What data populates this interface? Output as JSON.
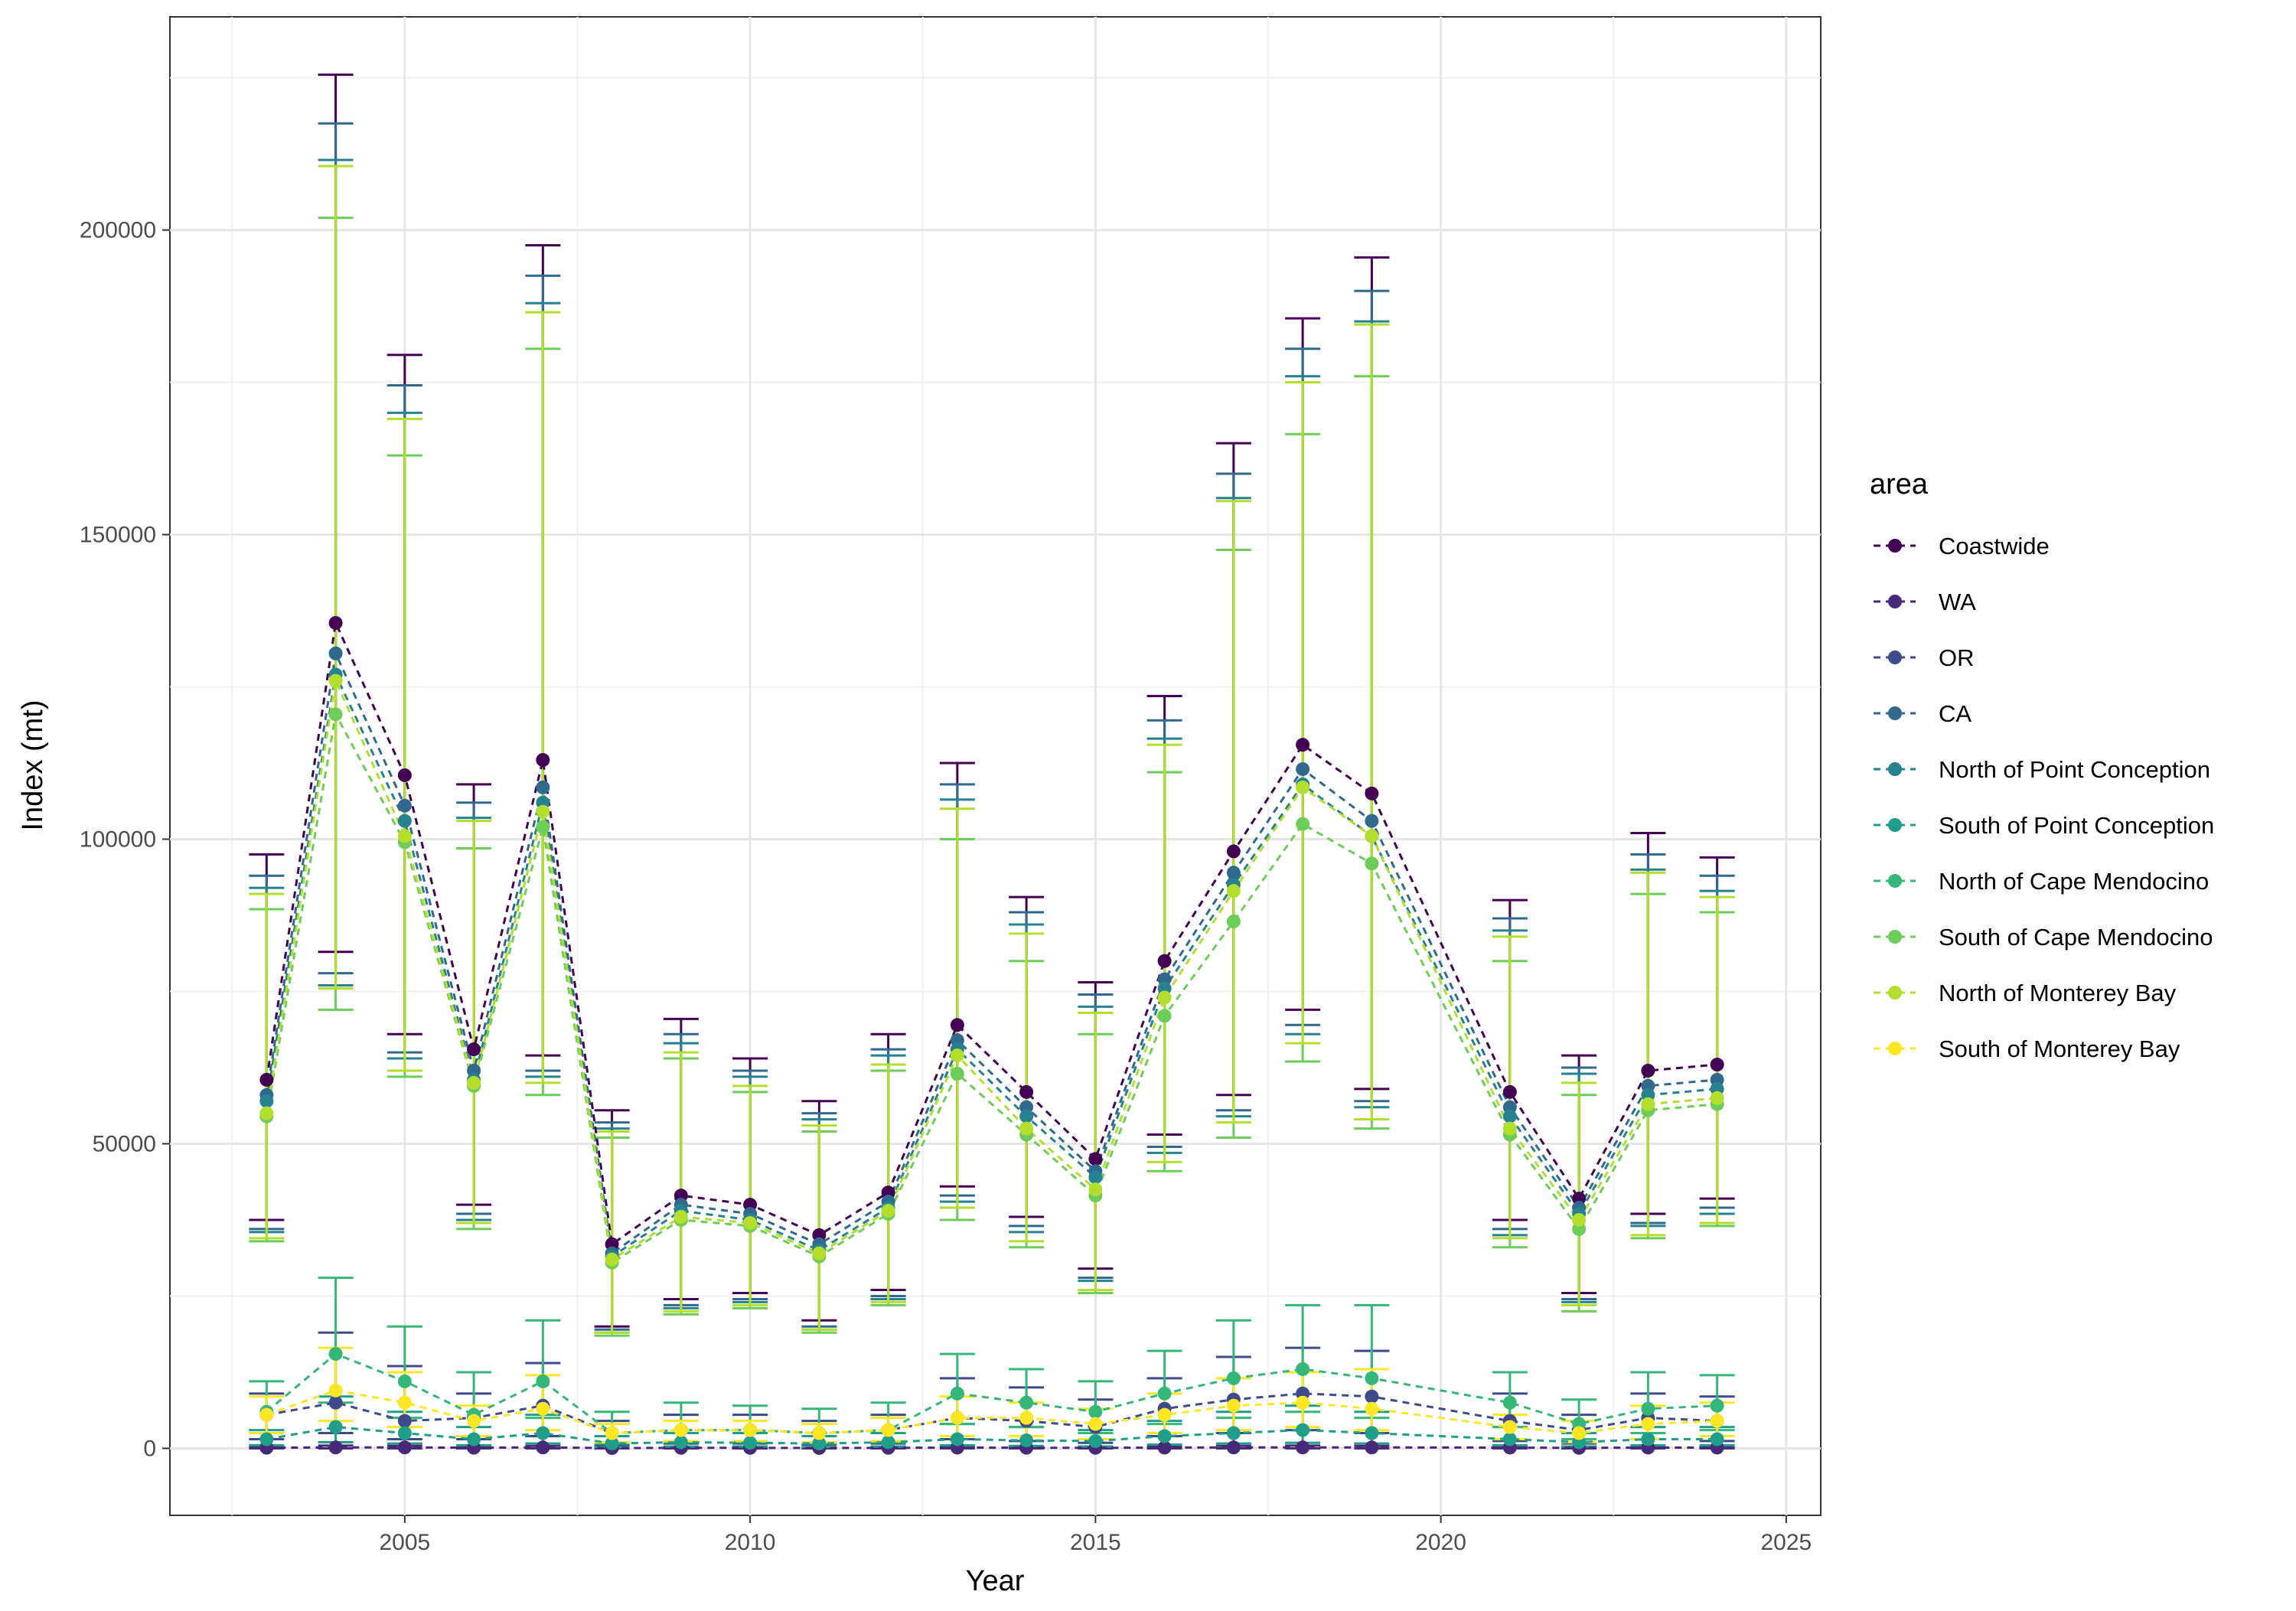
{
  "chart_data": {
    "type": "line",
    "xlabel": "Year",
    "ylabel": "Index (mt)",
    "x_ticks": [
      2005,
      2010,
      2015,
      2020,
      2025
    ],
    "y_ticks": [
      0,
      50000,
      100000,
      150000,
      200000
    ],
    "x_tick_labels": [
      "2005",
      "2010",
      "2015",
      "2020",
      "2025"
    ],
    "y_tick_labels": [
      "0",
      "50000",
      "100000",
      "150000",
      "200000"
    ],
    "xlim": [
      2001.6,
      2025.5
    ],
    "ylim": [
      -11000,
      235000
    ],
    "grid": true,
    "legend_position": "right",
    "legend_title": "area",
    "years": [
      2003,
      2004,
      2005,
      2006,
      2007,
      2008,
      2009,
      2010,
      2011,
      2012,
      2013,
      2014,
      2015,
      2016,
      2017,
      2018,
      2019,
      2021,
      2022,
      2023,
      2024
    ],
    "series": [
      {
        "name": "Coastwide",
        "color": "#440154",
        "values": [
          60500,
          135500,
          110500,
          65500,
          113000,
          33500,
          41500,
          40000,
          35000,
          42000,
          69500,
          58500,
          47500,
          80000,
          98000,
          115500,
          107500,
          58500,
          41000,
          62000,
          63000
        ],
        "lower": [
          37500,
          81500,
          68000,
          40000,
          64500,
          20000,
          24500,
          25500,
          21000,
          26000,
          43000,
          38000,
          29500,
          51500,
          58000,
          72000,
          59000,
          37500,
          25500,
          38500,
          41000
        ],
        "upper": [
          97500,
          225500,
          179500,
          109000,
          197500,
          55500,
          70500,
          64000,
          57000,
          68000,
          112500,
          90500,
          76500,
          123500,
          165000,
          185500,
          195500,
          90000,
          64500,
          101000,
          97000
        ]
      },
      {
        "name": "WA",
        "color": "#482878",
        "values": [
          100,
          150,
          150,
          100,
          150,
          50,
          80,
          80,
          60,
          80,
          120,
          100,
          80,
          120,
          150,
          150,
          150,
          120,
          80,
          120,
          120
        ],
        "lower": [
          0,
          0,
          0,
          0,
          0,
          0,
          0,
          0,
          0,
          0,
          0,
          0,
          0,
          0,
          0,
          0,
          0,
          0,
          0,
          0,
          0
        ],
        "upper": [
          300,
          450,
          400,
          300,
          400,
          200,
          250,
          250,
          200,
          250,
          350,
          300,
          250,
          350,
          400,
          450,
          400,
          350,
          250,
          350,
          350
        ]
      },
      {
        "name": "OR",
        "color": "#3E4A89",
        "values": [
          5500,
          7500,
          4500,
          5000,
          7000,
          2500,
          3000,
          3000,
          2500,
          3000,
          5000,
          4500,
          3500,
          6500,
          8000,
          9000,
          8500,
          4500,
          3000,
          5000,
          4500
        ],
        "lower": [
          1500,
          2500,
          1500,
          1500,
          2000,
          500,
          800,
          800,
          600,
          800,
          1500,
          1200,
          900,
          2000,
          2500,
          3000,
          2500,
          1200,
          800,
          1500,
          1200
        ],
        "upper": [
          9000,
          19000,
          13500,
          9000,
          14000,
          4500,
          5500,
          5500,
          4500,
          5500,
          11500,
          10000,
          8000,
          11500,
          15000,
          16500,
          16000,
          9000,
          5500,
          9000,
          8500
        ]
      },
      {
        "name": "CA",
        "color": "#31688E",
        "values": [
          58000,
          130500,
          105500,
          62000,
          108500,
          32000,
          40000,
          38500,
          33500,
          40500,
          67000,
          56000,
          45500,
          77000,
          94500,
          111500,
          103000,
          56000,
          39500,
          59500,
          60500
        ],
        "lower": [
          36000,
          78000,
          65000,
          38500,
          62000,
          19500,
          23500,
          24500,
          20000,
          25000,
          41500,
          36500,
          28000,
          49500,
          55500,
          69500,
          57000,
          36000,
          24500,
          37000,
          39500
        ],
        "upper": [
          94000,
          217500,
          174500,
          106000,
          192500,
          53500,
          68000,
          62000,
          55000,
          65500,
          109000,
          88000,
          74500,
          119500,
          160000,
          180500,
          190000,
          87000,
          62500,
          97500,
          94000
        ]
      },
      {
        "name": "North of Point Conception",
        "color": "#26828E",
        "values": [
          57000,
          127000,
          103000,
          60500,
          106000,
          31500,
          39000,
          37500,
          32500,
          39500,
          65500,
          54500,
          44500,
          75500,
          92500,
          109000,
          100500,
          54500,
          38500,
          58000,
          59000
        ],
        "lower": [
          35500,
          76000,
          64000,
          37500,
          61000,
          19000,
          23000,
          24000,
          19500,
          24500,
          40500,
          35500,
          27500,
          48500,
          54500,
          68000,
          56000,
          35000,
          24000,
          36500,
          38500
        ],
        "upper": [
          92000,
          211500,
          170000,
          103500,
          188000,
          52500,
          66500,
          61000,
          54000,
          64500,
          106500,
          86000,
          72500,
          116500,
          156000,
          176000,
          185000,
          85000,
          61500,
          95000,
          91500
        ]
      },
      {
        "name": "South of Point Conception",
        "color": "#1F9E89",
        "values": [
          1500,
          3500,
          2500,
          1500,
          2500,
          800,
          1000,
          900,
          800,
          1000,
          1500,
          1300,
          1200,
          2000,
          2500,
          3000,
          2500,
          1500,
          1000,
          1500,
          1500
        ],
        "lower": [
          500,
          1000,
          800,
          500,
          800,
          200,
          300,
          300,
          200,
          300,
          500,
          400,
          300,
          600,
          800,
          900,
          800,
          500,
          300,
          500,
          500
        ],
        "upper": [
          3000,
          8500,
          6000,
          3500,
          5500,
          2000,
          2500,
          2500,
          2000,
          2500,
          4000,
          3500,
          3000,
          4500,
          6000,
          7000,
          6000,
          3500,
          2500,
          3500,
          3500
        ]
      },
      {
        "name": "North of Cape Mendocino",
        "color": "#35B779",
        "values": [
          6000,
          15500,
          11000,
          5500,
          11000,
          2500,
          3000,
          3000,
          2500,
          3000,
          9000,
          7500,
          6000,
          9000,
          11500,
          13000,
          11500,
          7500,
          4000,
          6500,
          7000
        ],
        "lower": [
          2500,
          7500,
          5000,
          2000,
          5000,
          800,
          1000,
          1000,
          800,
          1000,
          4000,
          3500,
          2500,
          4000,
          5000,
          6000,
          5000,
          3500,
          1500,
          2500,
          3000
        ],
        "upper": [
          11000,
          28000,
          20000,
          12500,
          21000,
          6000,
          7500,
          7000,
          6500,
          7500,
          15500,
          13000,
          11000,
          16000,
          21000,
          23500,
          23500,
          12500,
          8000,
          12500,
          12000
        ]
      },
      {
        "name": "South of Cape Mendocino",
        "color": "#6DCD59",
        "values": [
          54500,
          120500,
          99500,
          59500,
          102000,
          30500,
          37500,
          36500,
          31500,
          38500,
          61500,
          51500,
          41500,
          71000,
          86500,
          102500,
          96000,
          51500,
          36000,
          55500,
          56500
        ],
        "lower": [
          34000,
          72000,
          61000,
          36000,
          58000,
          18500,
          22000,
          23000,
          19000,
          23500,
          37500,
          33000,
          25500,
          45500,
          51000,
          63500,
          52500,
          33000,
          22500,
          34500,
          36500
        ],
        "upper": [
          88500,
          202000,
          163000,
          98500,
          180500,
          51000,
          64000,
          58500,
          52000,
          62000,
          100000,
          80000,
          68000,
          111000,
          147500,
          166500,
          176000,
          80000,
          58000,
          91000,
          88000
        ]
      },
      {
        "name": "North of Monterey Bay",
        "color": "#B4DE2C",
        "values": [
          55000,
          126000,
          100500,
          60000,
          104500,
          31000,
          38000,
          37000,
          32000,
          39000,
          64500,
          52500,
          42500,
          74000,
          91500,
          108500,
          100500,
          52500,
          37500,
          56500,
          57500
        ],
        "lower": [
          34500,
          75500,
          62000,
          37000,
          60000,
          19000,
          22500,
          23500,
          19500,
          24000,
          39500,
          34000,
          26000,
          47000,
          53500,
          66500,
          54000,
          34500,
          23500,
          35000,
          37000
        ],
        "upper": [
          91000,
          210500,
          169000,
          103000,
          186500,
          52000,
          65000,
          59500,
          53000,
          63000,
          105000,
          84500,
          71500,
          115500,
          155500,
          175000,
          184500,
          84000,
          60000,
          94500,
          90500
        ]
      },
      {
        "name": "South of Monterey Bay",
        "color": "#FDE725",
        "values": [
          5500,
          9500,
          7500,
          4500,
          6500,
          2500,
          3000,
          3000,
          2500,
          3000,
          5000,
          5000,
          4000,
          5500,
          7000,
          7500,
          6500,
          3500,
          2500,
          4000,
          4500
        ],
        "lower": [
          2500,
          4500,
          3500,
          2000,
          3000,
          1000,
          1200,
          1200,
          1000,
          1200,
          2000,
          2000,
          1500,
          2500,
          3000,
          3500,
          3000,
          1500,
          1000,
          1500,
          2000
        ],
        "upper": [
          8500,
          16500,
          12500,
          7000,
          12000,
          4000,
          4500,
          4500,
          4000,
          5000,
          8500,
          7500,
          6500,
          9000,
          11500,
          12500,
          13000,
          5500,
          4500,
          7000,
          7500
        ]
      }
    ]
  }
}
